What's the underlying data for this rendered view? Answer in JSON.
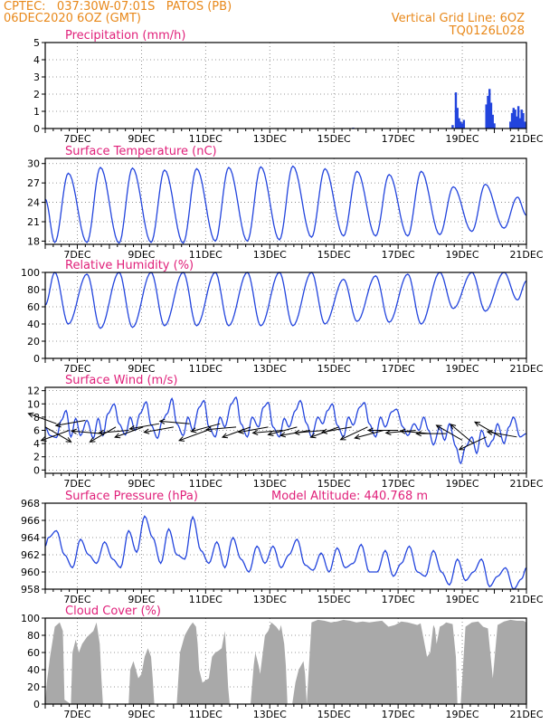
{
  "header": {
    "line1": "CPTEC:   037:30W-07:01S   PATOS (PB)",
    "line2": "06DEC2020 6OZ (GMT)",
    "grid_note": "Vertical Grid Line: 6OZ",
    "run_code": "TQ0126L028"
  },
  "colors": {
    "header": "#e8881a",
    "title": "#e0207a",
    "series": "#2244dd",
    "cloud": "#a9a9a9",
    "arrow": "#000000",
    "axis": "#000000",
    "grid": "#777777"
  },
  "chart_data": [
    {
      "type": "bar",
      "title": "Precipitation (mm/h)",
      "x_tick_labels": [
        "7DEC",
        "9DEC",
        "11DEC",
        "13DEC",
        "15DEC",
        "17DEC",
        "19DEC",
        "21DEC"
      ],
      "x_tick_days": [
        7,
        9,
        11,
        13,
        15,
        17,
        19,
        21
      ],
      "xlim_days": [
        6.0,
        21.0
      ],
      "y_tick_labels": [
        "0",
        "1",
        "2",
        "3",
        "4",
        "5"
      ],
      "y_ticks": [
        0,
        1,
        2,
        3,
        4,
        5
      ],
      "ylim": [
        0,
        5
      ],
      "grid": "dotted",
      "x_days": [
        15.6,
        18.7,
        18.8,
        18.85,
        18.9,
        18.95,
        19.0,
        19.05,
        19.75,
        19.8,
        19.85,
        19.9,
        19.95,
        20.0,
        20.5,
        20.55,
        20.6,
        20.65,
        20.7,
        20.75,
        20.8,
        20.85,
        20.9,
        20.95
      ],
      "values": [
        0.05,
        0.2,
        2.1,
        1.2,
        0.6,
        0.4,
        0.3,
        0.5,
        1.4,
        1.9,
        2.3,
        1.5,
        0.8,
        0.3,
        0.4,
        0.9,
        1.2,
        1.1,
        0.7,
        1.3,
        0.6,
        1.1,
        0.9,
        0.4
      ]
    },
    {
      "type": "line",
      "title": "Surface Temperature (nC)",
      "x_tick_labels": [
        "7DEC",
        "9DEC",
        "11DEC",
        "13DEC",
        "15DEC",
        "17DEC",
        "19DEC",
        "21DEC"
      ],
      "x_tick_days": [
        7,
        9,
        11,
        13,
        15,
        17,
        19,
        21
      ],
      "xlim_days": [
        6.0,
        21.0
      ],
      "y_tick_labels": [
        "18",
        "21",
        "24",
        "27",
        "30"
      ],
      "y_ticks": [
        18,
        21,
        24,
        27,
        30
      ],
      "ylim": [
        17.5,
        30.8
      ],
      "grid": "dotted",
      "daily": {
        "min_day_offset": 0.3,
        "max_day_offset": 0.72,
        "start": [
          6.0,
          24.5
        ],
        "end": [
          21.0,
          22.0
        ],
        "min": [
          17.8,
          17.8,
          17.7,
          17.8,
          17.7,
          18.0,
          18.0,
          18.2,
          18.6,
          18.8,
          18.8,
          18.8,
          19.0,
          19.5,
          20.0
        ],
        "max": [
          28.5,
          29.4,
          29.3,
          29.0,
          29.2,
          29.4,
          29.5,
          29.6,
          29.2,
          28.8,
          28.3,
          28.8,
          26.4,
          26.8,
          24.8
        ]
      }
    },
    {
      "type": "line",
      "title": "Relative Humidity (%)",
      "x_tick_labels": [
        "7DEC",
        "9DEC",
        "11DEC",
        "13DEC",
        "15DEC",
        "17DEC",
        "19DEC",
        "21DEC"
      ],
      "x_tick_days": [
        7,
        9,
        11,
        13,
        15,
        17,
        19,
        21
      ],
      "xlim_days": [
        6.0,
        21.0
      ],
      "y_tick_labels": [
        "0",
        "20",
        "40",
        "60",
        "80",
        "100"
      ],
      "y_ticks": [
        0,
        20,
        40,
        60,
        80,
        100
      ],
      "ylim": [
        0,
        100
      ],
      "grid": "dotted",
      "daily": {
        "high_day_offset": 0.3,
        "low_day_offset": 0.72,
        "start": [
          6.0,
          62
        ],
        "end": [
          21.0,
          90
        ],
        "high": [
          100,
          98,
          100,
          100,
          100,
          100,
          100,
          100,
          100,
          92,
          96,
          98,
          100,
          100,
          100
        ],
        "low": [
          40,
          35,
          36,
          38,
          38,
          38,
          38,
          38,
          40,
          43,
          42,
          40,
          58,
          55,
          68
        ]
      }
    },
    {
      "type": "line",
      "title": "Surface Wind (m/s)",
      "x_tick_labels": [
        "7DEC",
        "9DEC",
        "11DEC",
        "13DEC",
        "15DEC",
        "17DEC",
        "19DEC",
        "21DEC"
      ],
      "x_tick_days": [
        7,
        9,
        11,
        13,
        15,
        17,
        19,
        21
      ],
      "xlim_days": [
        6.0,
        21.0
      ],
      "y_tick_labels": [
        "0",
        "2",
        "4",
        "6",
        "8",
        "10",
        "12"
      ],
      "y_ticks": [
        0,
        2,
        4,
        6,
        8,
        10,
        12
      ],
      "ylim": [
        -0.5,
        12.5
      ],
      "grid": "dotted",
      "x_days": [
        6.0,
        6.15,
        6.35,
        6.5,
        6.65,
        6.8,
        6.95,
        7.1,
        7.3,
        7.5,
        7.65,
        7.8,
        7.95,
        8.15,
        8.3,
        8.5,
        8.65,
        8.8,
        8.95,
        9.15,
        9.3,
        9.5,
        9.65,
        9.8,
        9.95,
        10.1,
        10.3,
        10.45,
        10.6,
        10.8,
        10.95,
        11.1,
        11.3,
        11.45,
        11.6,
        11.8,
        11.95,
        12.1,
        12.3,
        12.45,
        12.65,
        12.8,
        12.95,
        13.1,
        13.3,
        13.45,
        13.6,
        13.8,
        13.95,
        14.15,
        14.3,
        14.5,
        14.65,
        14.8,
        14.95,
        15.1,
        15.3,
        15.45,
        15.6,
        15.8,
        15.95,
        16.1,
        16.3,
        16.45,
        16.6,
        16.8,
        16.95,
        17.15,
        17.3,
        17.5,
        17.65,
        17.8,
        17.95,
        18.1,
        18.3,
        18.45,
        18.6,
        18.8,
        18.95,
        19.1,
        19.3,
        19.45,
        19.6,
        19.8,
        19.95,
        20.1,
        20.3,
        20.45,
        20.6,
        20.8,
        21.0
      ],
      "values": [
        6.5,
        5.2,
        4.9,
        7.5,
        9.0,
        5.0,
        7.8,
        5.2,
        7.5,
        4.8,
        7.8,
        5.2,
        8.5,
        10.0,
        7.0,
        5.3,
        8.0,
        6.0,
        8.5,
        10.3,
        6.8,
        4.8,
        7.5,
        8.5,
        10.8,
        7.0,
        5.2,
        8.0,
        6.0,
        9.5,
        10.5,
        6.5,
        5.0,
        8.0,
        6.5,
        10.0,
        11.0,
        7.0,
        5.0,
        8.0,
        6.5,
        9.5,
        10.2,
        6.5,
        5.0,
        7.8,
        6.5,
        9.0,
        10.5,
        7.0,
        5.0,
        8.0,
        7.0,
        9.0,
        10.0,
        6.8,
        5.0,
        8.0,
        6.8,
        9.5,
        10.2,
        7.0,
        5.0,
        8.0,
        6.5,
        8.8,
        9.2,
        6.5,
        5.2,
        7.0,
        6.0,
        8.0,
        6.0,
        3.8,
        6.5,
        4.5,
        7.0,
        3.5,
        1.0,
        3.5,
        5.0,
        2.5,
        6.0,
        3.5,
        4.5,
        7.0,
        4.0,
        6.5,
        8.0,
        5.0,
        5.5
      ],
      "arrows": [
        {
          "day": 6.0,
          "speed": 6.5,
          "to_deg": 330
        },
        {
          "day": 6.35,
          "speed": 7.0,
          "to_deg": 160
        },
        {
          "day": 6.75,
          "speed": 6.0,
          "to_deg": 200
        },
        {
          "day": 7.25,
          "speed": 7.5,
          "to_deg": 190
        },
        {
          "day": 7.75,
          "speed": 5.5,
          "to_deg": 175
        },
        {
          "day": 8.2,
          "speed": 6.5,
          "to_deg": 210
        },
        {
          "day": 8.6,
          "speed": 6.0,
          "to_deg": 185
        },
        {
          "day": 9.05,
          "speed": 6.5,
          "to_deg": 200
        },
        {
          "day": 9.55,
          "speed": 7.0,
          "to_deg": 190
        },
        {
          "day": 10.0,
          "speed": 6.5,
          "to_deg": 190
        },
        {
          "day": 10.5,
          "speed": 7.0,
          "to_deg": 175
        },
        {
          "day": 11.05,
          "speed": 6.0,
          "to_deg": 200
        },
        {
          "day": 11.45,
          "speed": 7.0,
          "to_deg": 195
        },
        {
          "day": 11.95,
          "speed": 6.5,
          "to_deg": 185
        },
        {
          "day": 12.4,
          "speed": 6.5,
          "to_deg": 200
        },
        {
          "day": 12.95,
          "speed": 6.5,
          "to_deg": 190
        },
        {
          "day": 13.4,
          "speed": 6.0,
          "to_deg": 185
        },
        {
          "day": 13.85,
          "speed": 6.5,
          "to_deg": 195
        },
        {
          "day": 14.25,
          "speed": 6.0,
          "to_deg": 190
        },
        {
          "day": 14.7,
          "speed": 6.0,
          "to_deg": 185
        },
        {
          "day": 15.15,
          "speed": 6.5,
          "to_deg": 200
        },
        {
          "day": 15.55,
          "speed": 6.5,
          "to_deg": 190
        },
        {
          "day": 16.05,
          "speed": 6.5,
          "to_deg": 205
        },
        {
          "day": 16.55,
          "speed": 6.0,
          "to_deg": 195
        },
        {
          "day": 17.0,
          "speed": 6.0,
          "to_deg": 180
        },
        {
          "day": 17.55,
          "speed": 6.0,
          "to_deg": 185
        },
        {
          "day": 18.0,
          "speed": 5.5,
          "to_deg": 175
        },
        {
          "day": 18.5,
          "speed": 5.5,
          "to_deg": 180
        },
        {
          "day": 19.0,
          "speed": 4.5,
          "to_deg": 150
        },
        {
          "day": 19.35,
          "speed": 4.0,
          "to_deg": 140
        },
        {
          "day": 19.75,
          "speed": 5.0,
          "to_deg": 205
        },
        {
          "day": 20.2,
          "speed": 5.0,
          "to_deg": 150
        },
        {
          "day": 20.7,
          "speed": 5.0,
          "to_deg": 170
        }
      ]
    },
    {
      "type": "line",
      "title": "Surface Pressure (hPa)",
      "annotation": "Model Altitude: 440.768  m",
      "x_tick_labels": [
        "7DEC",
        "9DEC",
        "11DEC",
        "13DEC",
        "15DEC",
        "17DEC",
        "19DEC",
        "21DEC"
      ],
      "x_tick_days": [
        7,
        9,
        11,
        13,
        15,
        17,
        19,
        21
      ],
      "xlim_days": [
        6.0,
        21.0
      ],
      "y_tick_labels": [
        "958",
        "960",
        "962",
        "964",
        "966",
        "968"
      ],
      "y_ticks": [
        958,
        960,
        962,
        964,
        966,
        968
      ],
      "ylim": [
        958,
        968
      ],
      "grid": "dotted",
      "x_days": [
        6.0,
        6.1,
        6.35,
        6.6,
        6.85,
        7.1,
        7.35,
        7.6,
        7.85,
        8.1,
        8.35,
        8.6,
        8.85,
        9.1,
        9.35,
        9.6,
        9.85,
        10.1,
        10.35,
        10.6,
        10.85,
        11.1,
        11.35,
        11.6,
        11.85,
        12.1,
        12.35,
        12.6,
        12.85,
        13.1,
        13.35,
        13.6,
        13.85,
        14.1,
        14.35,
        14.6,
        14.85,
        15.1,
        15.35,
        15.6,
        15.85,
        16.1,
        16.35,
        16.6,
        16.85,
        17.1,
        17.35,
        17.6,
        17.85,
        18.1,
        18.35,
        18.6,
        18.85,
        19.1,
        19.35,
        19.6,
        19.85,
        20.1,
        20.35,
        20.6,
        20.85,
        21.0
      ],
      "values": [
        963.0,
        964.0,
        964.8,
        962.0,
        960.5,
        963.8,
        962.0,
        961.0,
        963.5,
        961.5,
        960.5,
        964.8,
        962.3,
        966.5,
        964.0,
        961.0,
        965.0,
        962.0,
        961.5,
        966.4,
        962.5,
        961.0,
        963.5,
        960.5,
        964.0,
        961.5,
        960.0,
        963.0,
        961.0,
        963.0,
        960.5,
        962.0,
        963.8,
        960.8,
        960.2,
        962.2,
        960.0,
        962.8,
        960.5,
        961.0,
        963.2,
        960.0,
        960.0,
        962.5,
        959.5,
        961.0,
        963.0,
        960.0,
        959.5,
        962.5,
        960.0,
        958.5,
        961.5,
        959.0,
        960.0,
        961.5,
        958.3,
        959.5,
        960.5,
        958.0,
        959.2,
        960.5
      ]
    },
    {
      "type": "area",
      "title": "Cloud Cover (%)",
      "x_tick_labels": [
        "7DEC",
        "9DEC",
        "11DEC",
        "13DEC",
        "15DEC",
        "17DEC",
        "19DEC",
        "21DEC"
      ],
      "x_tick_days": [
        7,
        9,
        11,
        13,
        15,
        17,
        19,
        21
      ],
      "xlim_days": [
        6.0,
        21.0
      ],
      "y_tick_labels": [
        "0",
        "20",
        "40",
        "60",
        "80",
        "100"
      ],
      "y_ticks": [
        0,
        20,
        40,
        60,
        80,
        100
      ],
      "ylim": [
        0,
        100
      ],
      "grid": "dotted",
      "x_days": [
        6.0,
        6.05,
        6.15,
        6.3,
        6.45,
        6.55,
        6.6,
        6.8,
        6.85,
        6.95,
        7.05,
        7.15,
        7.3,
        7.5,
        7.6,
        7.7,
        7.75,
        7.8,
        8.6,
        8.65,
        8.75,
        8.9,
        9.0,
        9.1,
        9.2,
        9.3,
        9.35,
        9.4,
        10.1,
        10.2,
        10.35,
        10.5,
        10.6,
        10.7,
        10.75,
        10.8,
        10.9,
        11.1,
        11.2,
        11.3,
        11.4,
        11.5,
        11.6,
        11.65,
        11.7,
        11.75,
        12.4,
        12.5,
        12.55,
        12.65,
        12.7,
        12.85,
        12.95,
        13.05,
        13.2,
        13.3,
        13.35,
        13.45,
        13.5,
        13.55,
        13.7,
        13.8,
        13.9,
        14.05,
        14.1,
        14.15,
        14.3,
        14.5,
        14.7,
        14.9,
        15.1,
        15.3,
        15.5,
        15.7,
        15.9,
        16.1,
        16.3,
        16.5,
        16.7,
        16.9,
        17.1,
        17.3,
        17.5,
        17.6,
        17.7,
        17.8,
        17.9,
        18.0,
        18.1,
        18.15,
        18.2,
        18.3,
        18.4,
        18.5,
        18.7,
        18.8,
        18.85,
        18.95,
        19.1,
        19.3,
        19.5,
        19.65,
        19.8,
        19.95,
        20.1,
        20.3,
        20.5,
        20.7,
        20.9,
        21.0
      ],
      "values": [
        0,
        25,
        55,
        90,
        95,
        85,
        5,
        0,
        60,
        75,
        60,
        70,
        78,
        85,
        95,
        70,
        30,
        0,
        0,
        40,
        50,
        30,
        35,
        55,
        65,
        55,
        30,
        0,
        0,
        60,
        80,
        90,
        95,
        90,
        70,
        40,
        25,
        30,
        55,
        60,
        62,
        65,
        85,
        55,
        20,
        0,
        0,
        45,
        60,
        45,
        35,
        80,
        85,
        95,
        90,
        85,
        92,
        70,
        45,
        0,
        0,
        25,
        40,
        50,
        35,
        0,
        95,
        98,
        97,
        95,
        96,
        98,
        97,
        95,
        96,
        95,
        96,
        97,
        90,
        92,
        96,
        95,
        93,
        92,
        94,
        75,
        55,
        60,
        92,
        88,
        70,
        90,
        92,
        95,
        93,
        55,
        0,
        0,
        90,
        95,
        96,
        90,
        88,
        30,
        92,
        96,
        98,
        97,
        97,
        95
      ]
    }
  ]
}
